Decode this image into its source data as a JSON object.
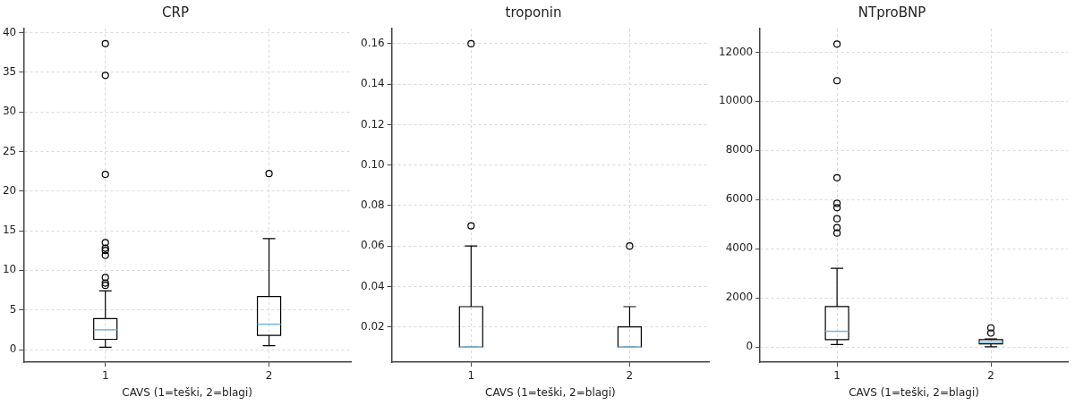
{
  "chart_data": [
    {
      "type": "box",
      "title": "CRP",
      "xlabel": "CAVS (1=teški, 2=blagi)",
      "categories": [
        "1",
        "2"
      ],
      "boxes": [
        {
          "low": 0.3,
          "q1": 1.3,
          "median": 2.5,
          "q3": 3.9,
          "high": 7.4,
          "outliers": [
            38.6,
            34.6,
            22.1,
            13.5,
            12.8,
            12.5,
            11.9,
            9.1,
            8.4,
            8.1
          ]
        },
        {
          "low": 0.5,
          "q1": 1.8,
          "median": 3.2,
          "q3": 6.7,
          "high": 14.0,
          "outliers": [
            22.2
          ]
        }
      ],
      "ylim": [
        -1.6,
        40.5
      ],
      "yticks": [
        0,
        5,
        10,
        15,
        20,
        25,
        30,
        35,
        40
      ],
      "grid": true,
      "legend": false
    },
    {
      "type": "box",
      "title": "troponin",
      "xlabel": "CAVS (1=teški, 2=blagi)",
      "categories": [
        "1",
        "2"
      ],
      "boxes": [
        {
          "low": 0.01,
          "q1": 0.01,
          "median": 0.01,
          "q3": 0.03,
          "high": 0.06,
          "outliers": [
            0.07,
            0.16
          ]
        },
        {
          "low": 0.01,
          "q1": 0.01,
          "median": 0.01,
          "q3": 0.02,
          "high": 0.03,
          "outliers": [
            0.06
          ]
        }
      ],
      "ylim": [
        0.0025,
        0.1675
      ],
      "yticks": [
        0.02,
        0.04,
        0.06,
        0.08,
        {
          "value": 0.1,
          "label": "0.10"
        },
        0.12,
        0.14,
        0.16
      ],
      "grid": true,
      "legend": false
    },
    {
      "type": "box",
      "title": "NTproBNP",
      "xlabel": "CAVS (1=teški, 2=blagi)",
      "categories": [
        "1",
        "2"
      ],
      "boxes": [
        {
          "low": 100,
          "q1": 300,
          "median": 640,
          "q3": 1650,
          "high": 3200,
          "outliers": [
            12330,
            10840,
            6890,
            5850,
            5670,
            5220,
            4860,
            4640
          ]
        },
        {
          "low": 10,
          "q1": 130,
          "median": 200,
          "q3": 300,
          "high": 330,
          "outliers": [
            780,
            570
          ]
        }
      ],
      "ylim": [
        -620,
        12960
      ],
      "yticks": [
        0,
        2000,
        4000,
        6000,
        8000,
        10000,
        12000
      ],
      "grid": true,
      "legend": false
    }
  ]
}
